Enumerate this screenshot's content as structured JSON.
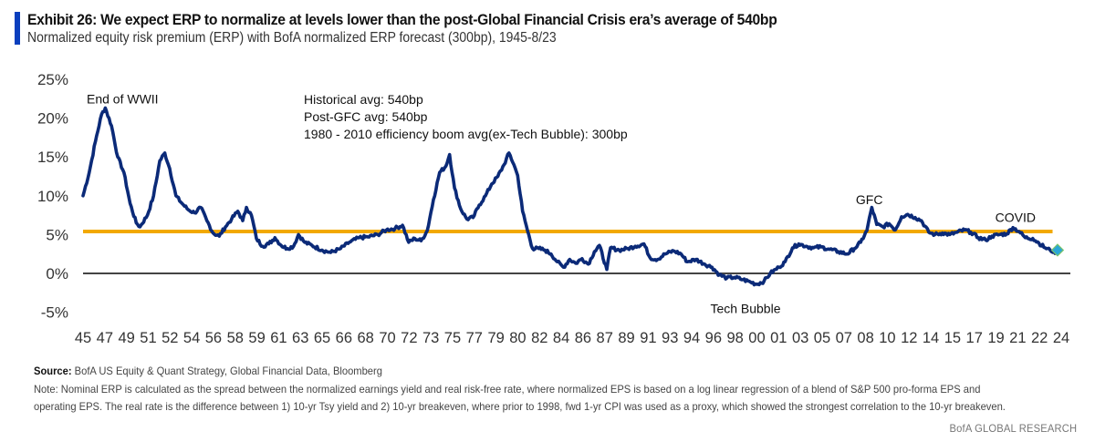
{
  "header": {
    "title": "Exhibit 26: We expect ERP to normalize at levels lower than the post-Global Financial Crisis era’s average of 540bp",
    "subtitle": "Normalized equity risk premium (ERP) with BofA normalized ERP forecast (300bp), 1945-8/23"
  },
  "colors": {
    "accent": "#0a3fbe",
    "series_line": "#0b2a78",
    "average_line": "#f2a900",
    "zero_line": "#444444",
    "forecast_marker": "#2aa7d6",
    "forecast_marker_edge": "#7cc46b"
  },
  "chart_data": {
    "type": "line",
    "title": "Normalized equity risk premium (ERP) with BofA normalized ERP forecast (300bp), 1945-8/23",
    "xlabel": "",
    "ylabel": "",
    "ylim": [
      -5,
      25
    ],
    "xlim": [
      1945,
      2024
    ],
    "yticks": [
      "25%",
      "20%",
      "15%",
      "10%",
      "5%",
      "0%",
      "-5%"
    ],
    "ytick_values": [
      25,
      20,
      15,
      10,
      5,
      0,
      -5
    ],
    "xticks": [
      "45",
      "47",
      "49",
      "51",
      "52",
      "54",
      "56",
      "58",
      "59",
      "61",
      "63",
      "65",
      "66",
      "68",
      "70",
      "72",
      "73",
      "75",
      "77",
      "79",
      "80",
      "82",
      "84",
      "86",
      "87",
      "89",
      "91",
      "93",
      "94",
      "96",
      "98",
      "00",
      "01",
      "03",
      "05",
      "07",
      "08",
      "10",
      "12",
      "14",
      "15",
      "17",
      "19",
      "21",
      "22",
      "24"
    ],
    "grid": false,
    "legend": "none",
    "series": [
      {
        "name": "Normalized ERP",
        "x": [
          1945.0,
          1945.5,
          1946.0,
          1946.5,
          1946.8,
          1947.3,
          1947.8,
          1948.3,
          1948.8,
          1949.3,
          1949.6,
          1950.2,
          1950.7,
          1951.2,
          1951.6,
          1952.0,
          1952.5,
          1953.0,
          1953.5,
          1954.0,
          1954.5,
          1955.0,
          1955.5,
          1956.0,
          1956.5,
          1957.0,
          1957.5,
          1957.9,
          1958.2,
          1958.6,
          1959.0,
          1959.5,
          1960.0,
          1960.5,
          1961.0,
          1961.5,
          1962.0,
          1962.4,
          1962.9,
          1963.5,
          1964.3,
          1965.0,
          1965.8,
          1966.5,
          1967.3,
          1968.0,
          1968.8,
          1969.5,
          1970.2,
          1970.8,
          1971.3,
          1971.8,
          1972.3,
          1972.8,
          1973.3,
          1973.8,
          1974.3,
          1974.6,
          1975.0,
          1975.5,
          1976.0,
          1976.5,
          1977.0,
          1977.5,
          1978.0,
          1978.5,
          1979.0,
          1979.4,
          1979.8,
          1980.1,
          1980.5,
          1980.9,
          1981.3,
          1981.8,
          1982.3,
          1982.8,
          1983.3,
          1983.8,
          1984.3,
          1984.8,
          1985.3,
          1985.8,
          1986.3,
          1986.7,
          1987.3,
          1987.6,
          1988.3,
          1989.0,
          1989.6,
          1990.3,
          1990.8,
          1991.4,
          1992.0,
          1992.7,
          1993.3,
          1993.8,
          1994.5,
          1995.2,
          1995.8,
          1996.4,
          1997.0,
          1997.6,
          1998.3,
          1998.9,
          1999.4,
          2000.0,
          2000.5,
          2001.2,
          2001.7,
          2002.3,
          2002.8,
          2003.4,
          2004.0,
          2004.6,
          2005.3,
          2006.0,
          2006.7,
          2007.3,
          2007.8,
          2008.3,
          2008.7,
          2009.1,
          2009.6,
          2010.1,
          2010.6,
          2011.1,
          2011.6,
          2012.2,
          2012.7,
          2013.3,
          2013.8,
          2014.4,
          2015.0,
          2015.6,
          2016.2,
          2016.7,
          2017.3,
          2017.9,
          2018.4,
          2019.0,
          2019.6,
          2020.1,
          2020.6,
          2021.1,
          2021.7,
          2022.2,
          2022.7,
          2023.1,
          2023.6
        ],
        "values": [
          10.0,
          13.0,
          17.0,
          20.5,
          21.3,
          19.0,
          15.0,
          13.0,
          9.0,
          6.5,
          6.0,
          7.5,
          10.0,
          14.5,
          15.5,
          13.5,
          10.0,
          9.0,
          8.2,
          7.8,
          8.5,
          6.8,
          5.2,
          4.8,
          6.0,
          7.0,
          8.0,
          6.8,
          8.5,
          7.5,
          4.5,
          3.5,
          3.8,
          4.6,
          3.6,
          3.2,
          3.5,
          5.0,
          4.0,
          3.6,
          3.0,
          2.7,
          3.2,
          4.0,
          4.6,
          4.7,
          5.0,
          5.6,
          5.8,
          6.2,
          4.0,
          4.5,
          4.2,
          5.5,
          9.5,
          13.0,
          13.8,
          15.3,
          11.0,
          8.3,
          7.0,
          7.2,
          8.8,
          10.0,
          11.5,
          12.5,
          14.0,
          15.5,
          14.0,
          12.6,
          8.0,
          5.5,
          3.2,
          3.2,
          3.0,
          2.5,
          1.5,
          0.8,
          1.8,
          1.3,
          1.9,
          1.2,
          2.8,
          3.6,
          0.5,
          3.3,
          3.0,
          3.2,
          3.5,
          3.8,
          2.0,
          1.8,
          2.5,
          2.9,
          2.5,
          1.5,
          1.8,
          1.2,
          0.8,
          -0.2,
          -0.6,
          -0.5,
          -0.8,
          -1.1,
          -1.4,
          -1.0,
          0.0,
          0.8,
          1.5,
          3.3,
          3.8,
          3.5,
          3.3,
          3.4,
          3.1,
          2.8,
          2.5,
          3.2,
          4.0,
          5.5,
          8.5,
          6.3,
          6.0,
          6.4,
          5.6,
          7.3,
          7.6,
          7.2,
          6.8,
          5.3,
          5.0,
          5.2,
          5.0,
          5.3,
          5.6,
          5.3,
          4.6,
          4.3,
          4.8,
          5.0,
          5.1,
          5.9,
          5.4,
          4.6,
          4.5,
          3.9,
          3.3,
          3.0,
          2.7
        ]
      },
      {
        "name": "Historical / Post-GFC average (540bp)",
        "x": [
          1945.0,
          2023.3
        ],
        "values": [
          5.4,
          5.4
        ]
      },
      {
        "name": "BofA normalized ERP forecast (300bp)",
        "x": [
          2023.7
        ],
        "values": [
          3.0
        ]
      }
    ],
    "annotations": [
      {
        "text": "End of WWII",
        "x": 1946.3,
        "y": 22.5
      },
      {
        "text": "GFC",
        "x": 2008.5,
        "y": 9.5
      },
      {
        "text": "COVID",
        "x": 2020.3,
        "y": 7.2
      },
      {
        "text": "Tech Bubble",
        "x": 1998.5,
        "y": -4.5
      }
    ],
    "textbox": [
      "Historical avg: 540bp",
      "Post-GFC avg: 540bp",
      "1980 - 2010 efficiency boom avg(ex-Tech Bubble): 300bp"
    ]
  },
  "footer": {
    "source_label": "Source:",
    "source_text": "BofA US Equity & Quant Strategy, Global Financial Data, Bloomberg",
    "note_line1": "Note: Nominal ERP is calculated as the spread between the normalized earnings yield and real risk-free rate, where normalized EPS is based on a log linear regression of a blend of S&P 500 pro-forma EPS and",
    "note_line2": "operating EPS. The real rate is the difference between 1) 10-yr Tsy yield and 2) 10-yr breakeven, where prior to 1998, fwd 1-yr CPI was used as a proxy, which showed the strongest correlation to the 10-yr breakeven.",
    "brand": "BofA GLOBAL RESEARCH"
  }
}
